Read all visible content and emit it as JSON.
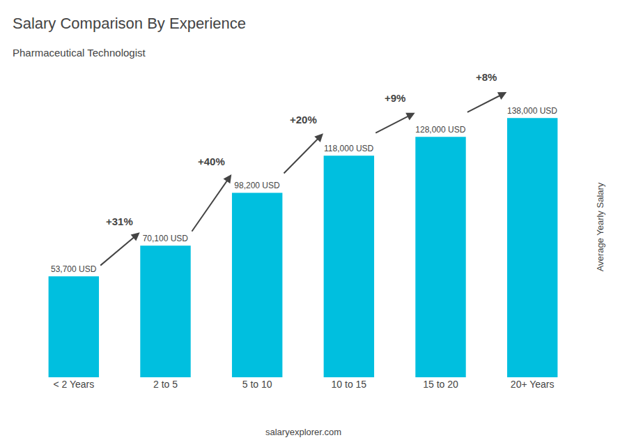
{
  "chart_data": {
    "type": "bar",
    "title": "Salary Comparison By Experience",
    "subtitle": "Pharmaceutical Technologist",
    "ylabel": "Average Yearly Salary",
    "categories": [
      "< 2 Years",
      "2 to 5",
      "5 to 10",
      "10 to 15",
      "15 to 20",
      "20+ Years"
    ],
    "values": [
      53700,
      70100,
      98200,
      118000,
      128000,
      138000
    ],
    "value_labels": [
      "53,700 USD",
      "70,100 USD",
      "98,200 USD",
      "118,000 USD",
      "128,000 USD",
      "138,000 USD"
    ],
    "data_labels": true,
    "color": "#00bfdf",
    "ylim": [
      0,
      160000
    ],
    "tick_labels": "x",
    "grid": false,
    "annotations": [
      {
        "text": "+31%",
        "category": "2 to 5"
      },
      {
        "text": "+40%",
        "category": "5 to 10"
      },
      {
        "text": "+20%",
        "category": "10 to 15"
      },
      {
        "text": "+9%",
        "category": "15 to 20"
      },
      {
        "text": "+8%",
        "category": "20+ Years"
      }
    ],
    "caption": "salaryexplorer.com"
  }
}
